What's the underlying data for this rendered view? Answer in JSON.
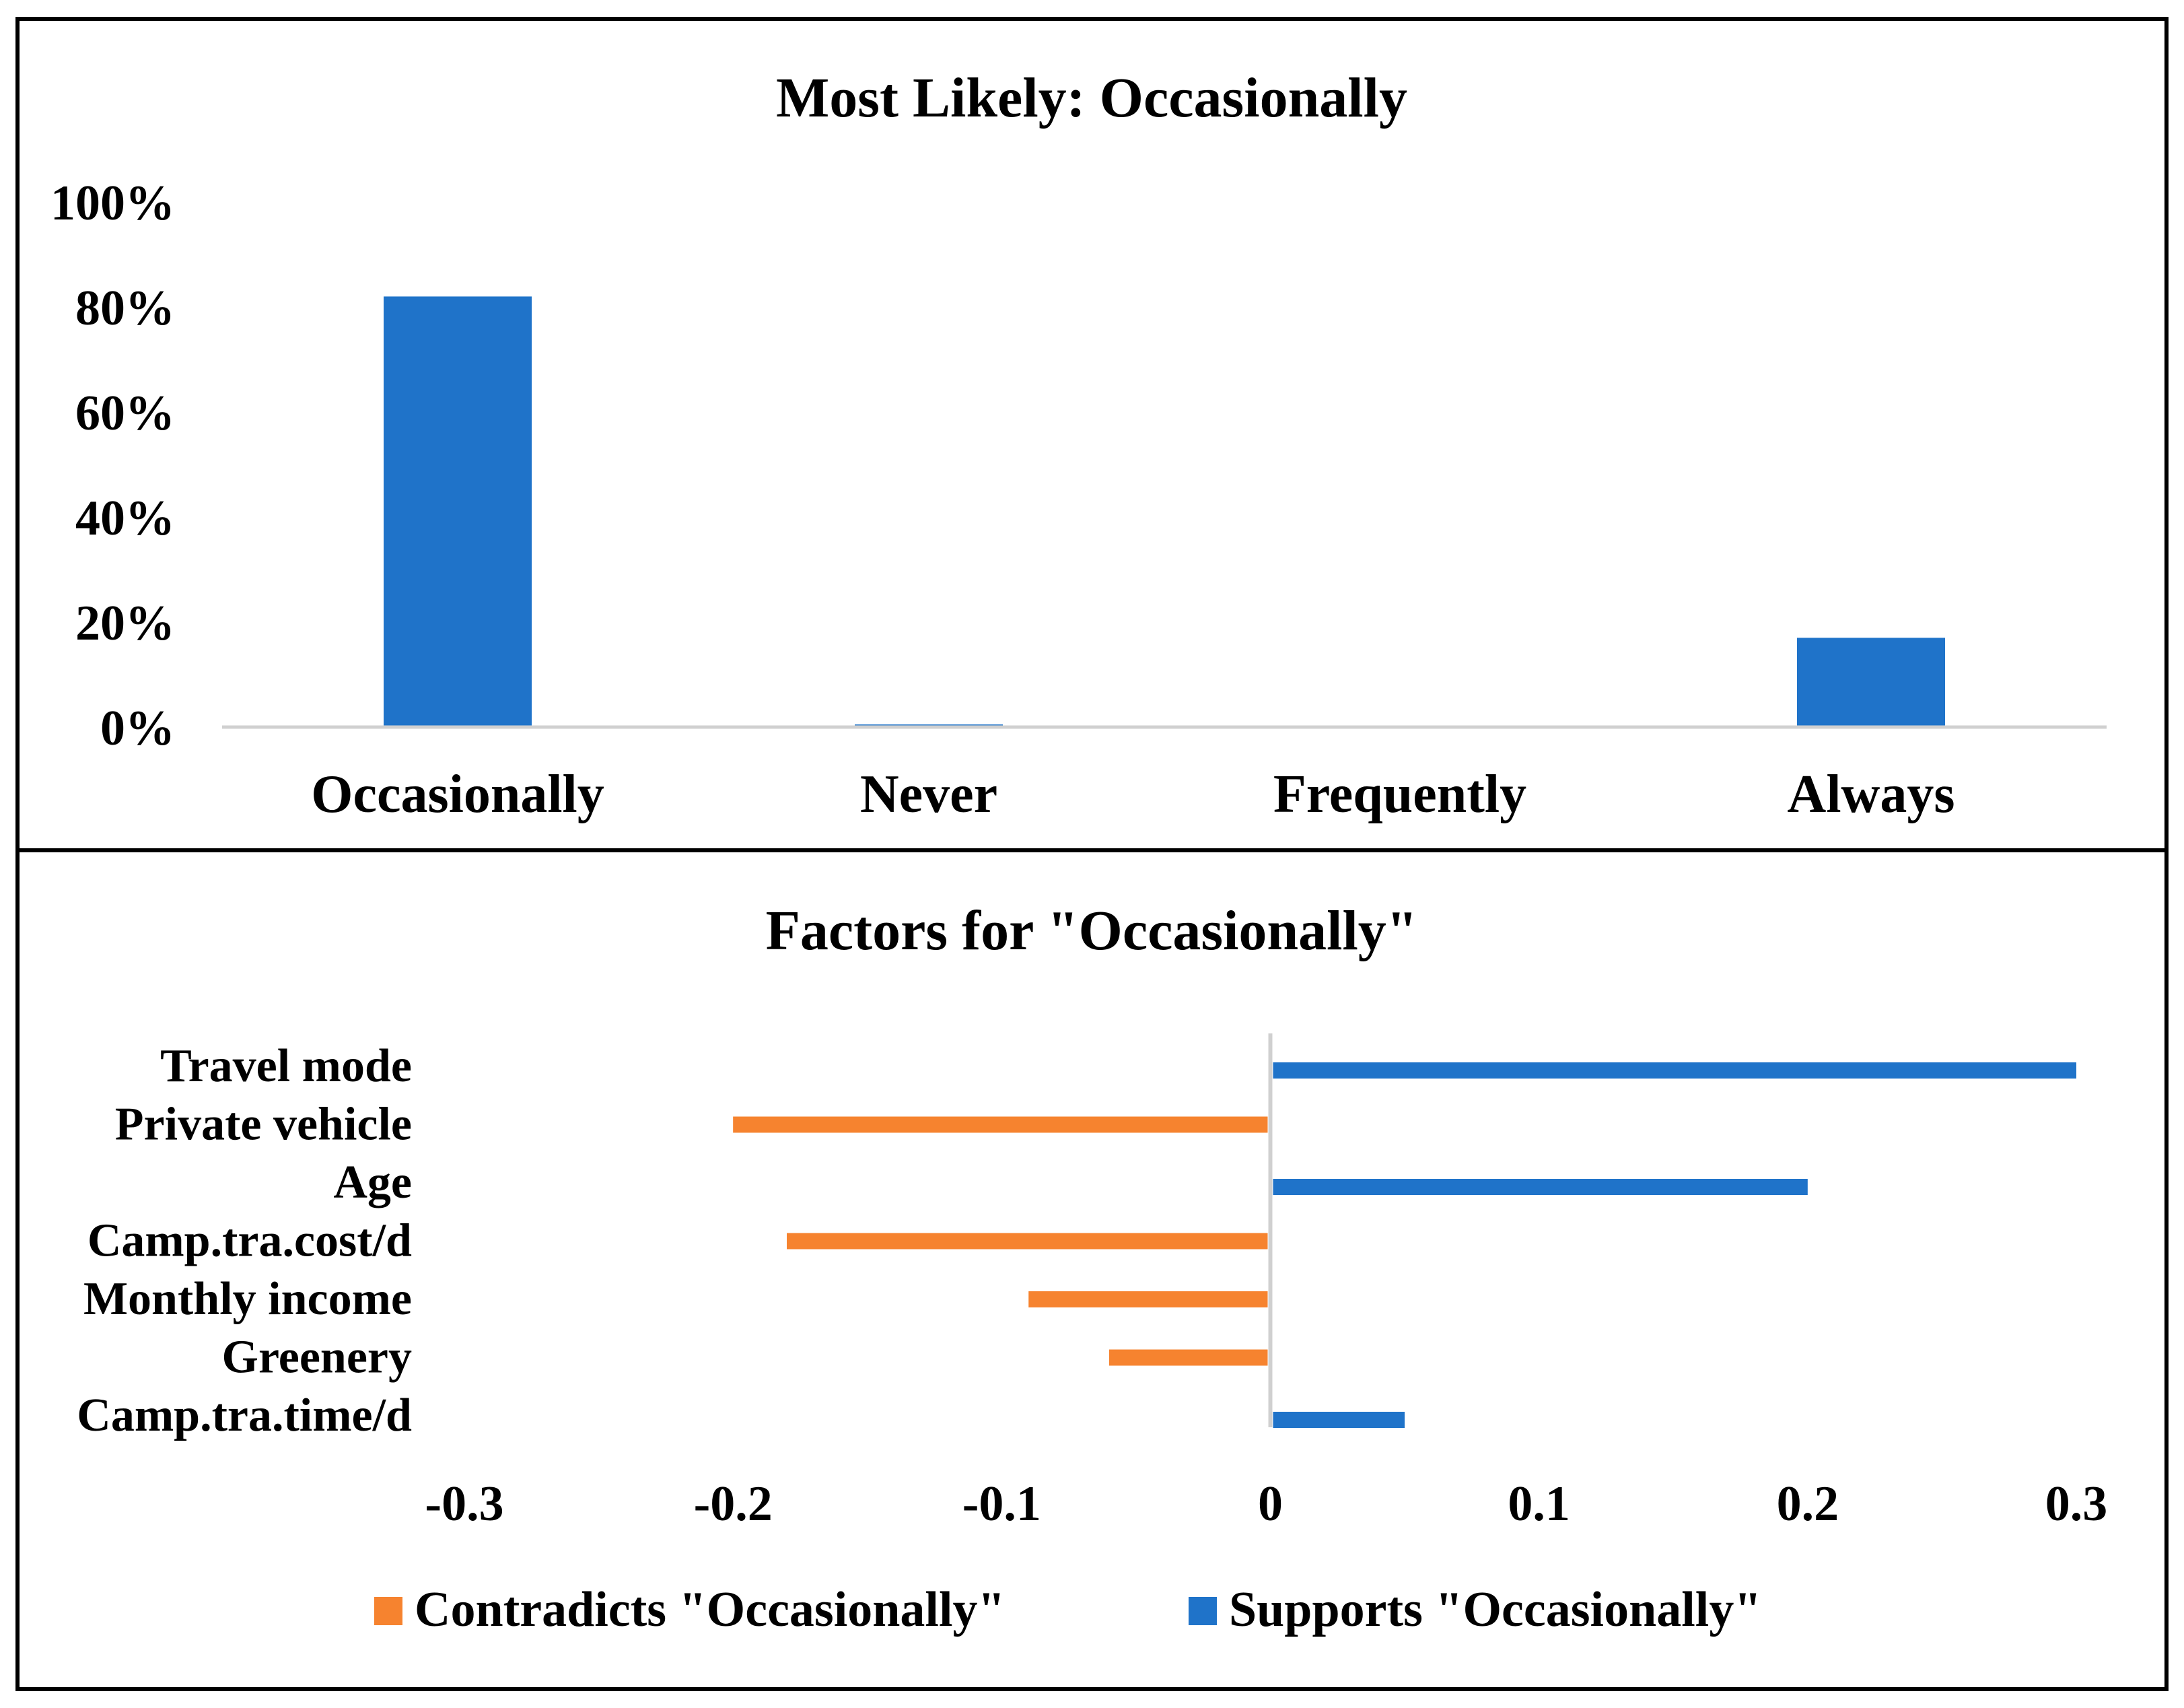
{
  "colors": {
    "blue": "#1F73C9",
    "orange": "#F6832F",
    "axis": "#d0d0d0",
    "frame": "#000000"
  },
  "chart_data": [
    {
      "type": "bar",
      "title": "Most Likely: Occasionally",
      "categories": [
        "Occasionally",
        "Never",
        "Frequently",
        "Always"
      ],
      "values": [
        0.82,
        0.005,
        0.0,
        0.17
      ],
      "ylim": [
        0,
        1
      ],
      "yticks": [
        0,
        0.2,
        0.4,
        0.6,
        0.8,
        1.0
      ],
      "ytick_labels": [
        "0%",
        "20%",
        "40%",
        "60%",
        "80%",
        "100%"
      ],
      "xlabel": "",
      "ylabel": ""
    },
    {
      "type": "bar",
      "orientation": "horizontal",
      "title": "Factors for \"Occasionally\"",
      "categories": [
        "Travel mode",
        "Private vehicle",
        "Age",
        "Camp.tra.cost/d",
        "Monthly income",
        "Greenery",
        "Camp.tra.time/d"
      ],
      "values": [
        0.3,
        -0.2,
        0.2,
        -0.18,
        -0.09,
        -0.06,
        0.05
      ],
      "xlim": [
        -0.3,
        0.3
      ],
      "xticks": [
        -0.3,
        -0.2,
        -0.1,
        0,
        0.1,
        0.2,
        0.3
      ],
      "xtick_labels": [
        "-0.3",
        "-0.2",
        "-0.1",
        "0",
        "0.1",
        "0.2",
        "0.3"
      ],
      "legend": [
        {
          "name": "Contradicts \"Occasionally\"",
          "color": "#F6832F"
        },
        {
          "name": "Supports \"Occasionally\"",
          "color": "#1F73C9"
        }
      ],
      "legend_position": "bottom"
    }
  ]
}
